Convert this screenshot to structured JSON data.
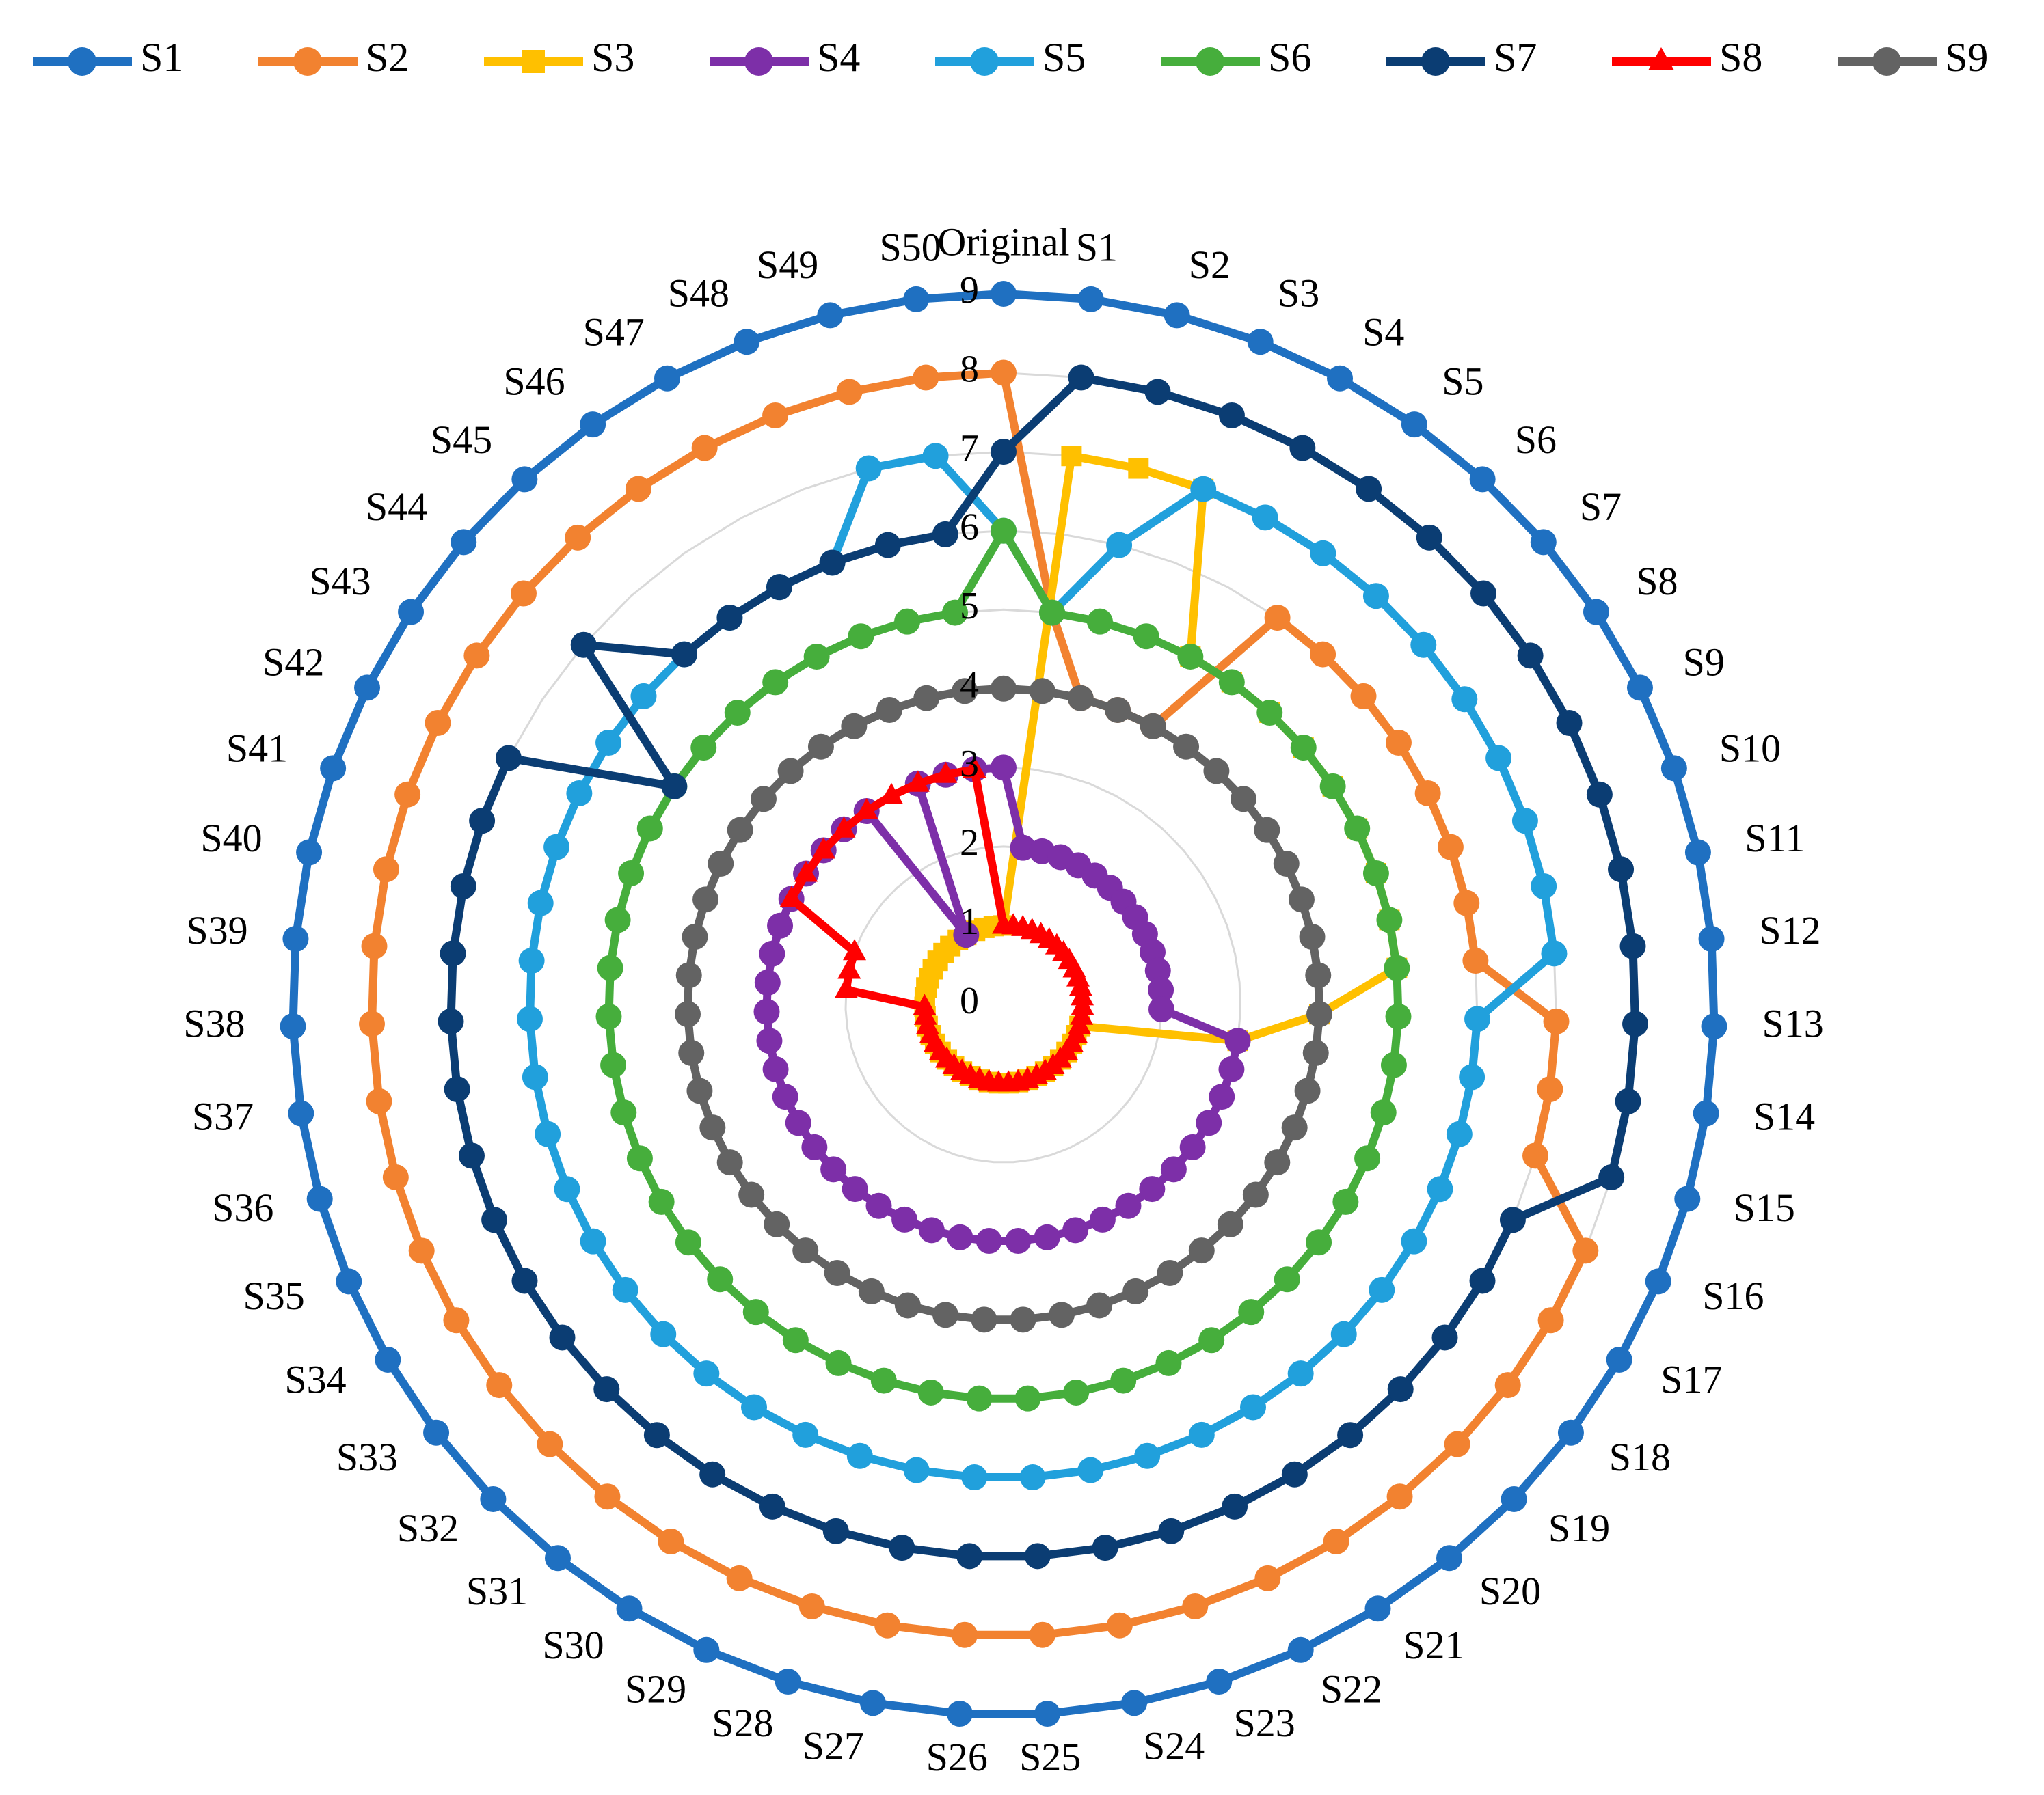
{
  "chart_data": {
    "type": "radar",
    "title": "",
    "rlim": [
      0,
      9
    ],
    "r_ticks": [
      "0",
      "1",
      "2",
      "3",
      "4",
      "5",
      "6",
      "7",
      "8",
      "9"
    ],
    "grid": true,
    "legend_position": "top",
    "categories": [
      "Original",
      "S1",
      "S2",
      "S3",
      "S4",
      "S5",
      "S6",
      "S7",
      "S8",
      "S9",
      "S10",
      "S11",
      "S12",
      "S13",
      "S14",
      "S15",
      "S16",
      "S17",
      "S18",
      "S19",
      "S20",
      "S21",
      "S22",
      "S23",
      "S24",
      "S25",
      "S26",
      "S27",
      "S28",
      "S29",
      "S30",
      "S31",
      "S32",
      "S33",
      "S34",
      "S35",
      "S36",
      "S37",
      "S38",
      "S39",
      "S40",
      "S41",
      "S42",
      "S43",
      "S44",
      "S45",
      "S46",
      "S47",
      "S48",
      "S49",
      "S50"
    ],
    "series": [
      {
        "name": "S1",
        "color": "#1F70C1",
        "marker": "circle",
        "values": [
          9,
          9,
          9,
          9,
          9,
          9,
          9,
          9,
          9,
          9,
          9,
          9,
          9,
          9,
          9,
          9,
          9,
          9,
          9,
          9,
          9,
          9,
          9,
          9,
          9,
          9,
          9,
          9,
          9,
          9,
          9,
          9,
          9,
          9,
          9,
          9,
          9,
          9,
          9,
          9,
          9,
          9,
          9,
          9,
          9,
          9,
          9,
          9,
          9,
          9,
          9
        ]
      },
      {
        "name": "S2",
        "color": "#F28230",
        "marker": "circle",
        "values": [
          8,
          5,
          4,
          4,
          4,
          6,
          6,
          6,
          6,
          6,
          6,
          6,
          6,
          7,
          7,
          7,
          8,
          8,
          8,
          8,
          8,
          8,
          8,
          8,
          8,
          8,
          8,
          8,
          8,
          8,
          8,
          8,
          8,
          8,
          8,
          8,
          8,
          8,
          8,
          8,
          8,
          8,
          8,
          8,
          8,
          8,
          8,
          8,
          8,
          8,
          8
        ]
      },
      {
        "name": "S3",
        "color": "#FFC000",
        "marker": "square",
        "values": [
          1,
          7,
          7,
          7,
          5,
          5,
          5,
          5,
          5,
          5,
          5,
          5,
          5,
          4,
          3,
          1,
          1,
          1,
          1,
          1,
          1,
          1,
          1,
          1,
          1,
          1,
          1,
          1,
          1,
          1,
          1,
          1,
          1,
          1,
          1,
          1,
          1,
          1,
          1,
          1,
          1,
          1,
          1,
          1,
          1,
          1,
          1,
          1,
          1,
          1,
          1
        ]
      },
      {
        "name": "S4",
        "color": "#7D2FA8",
        "marker": "circle",
        "values": [
          3,
          2,
          2,
          2,
          2,
          2,
          2,
          2,
          2,
          2,
          2,
          2,
          2,
          2,
          3,
          3,
          3,
          3,
          3,
          3,
          3,
          3,
          3,
          3,
          3,
          3,
          3,
          3,
          3,
          3,
          3,
          3,
          3,
          3,
          3,
          3,
          3,
          3,
          3,
          3,
          3,
          3,
          3,
          3,
          3,
          3,
          3,
          1,
          3,
          3,
          3
        ]
      },
      {
        "name": "S5",
        "color": "#21A0DC",
        "marker": "circle",
        "values": [
          6,
          5,
          6,
          7,
          7,
          7,
          7,
          7,
          7,
          7,
          7,
          7,
          7,
          6,
          6,
          6,
          6,
          6,
          6,
          6,
          6,
          6,
          6,
          6,
          6,
          6,
          6,
          6,
          6,
          6,
          6,
          6,
          6,
          6,
          6,
          6,
          6,
          6,
          6,
          6,
          6,
          6,
          6,
          6,
          6,
          6,
          6,
          6,
          6,
          7,
          7
        ]
      },
      {
        "name": "S6",
        "color": "#46AE3C",
        "marker": "circle",
        "values": [
          6,
          5,
          5,
          5,
          5,
          5,
          5,
          5,
          5,
          5,
          5,
          5,
          5,
          5,
          5,
          5,
          5,
          5,
          5,
          5,
          5,
          5,
          5,
          5,
          5,
          5,
          5,
          5,
          5,
          5,
          5,
          5,
          5,
          5,
          5,
          5,
          5,
          5,
          5,
          5,
          5,
          5,
          5,
          5,
          5,
          5,
          5,
          5,
          5,
          5,
          5
        ]
      },
      {
        "name": "S7",
        "color": "#0B3D73",
        "marker": "circle",
        "values": [
          7,
          8,
          8,
          8,
          8,
          8,
          8,
          8,
          8,
          8,
          8,
          8,
          8,
          8,
          8,
          8,
          7,
          7,
          7,
          7,
          7,
          7,
          7,
          7,
          7,
          7,
          7,
          7,
          7,
          7,
          7,
          7,
          7,
          7,
          7,
          7,
          7,
          7,
          7,
          7,
          7,
          7,
          7,
          5,
          7,
          6,
          6,
          6,
          6,
          6,
          6
        ]
      },
      {
        "name": "S8",
        "color": "#FF0000",
        "marker": "triangle",
        "values": [
          1,
          1,
          1,
          1,
          1,
          1,
          1,
          1,
          1,
          1,
          1,
          1,
          1,
          1,
          1,
          1,
          1,
          1,
          1,
          1,
          1,
          1,
          1,
          1,
          1,
          1,
          1,
          1,
          1,
          1,
          1,
          1,
          1,
          1,
          1,
          1,
          1,
          1,
          1,
          2,
          2,
          2,
          3,
          3,
          3,
          3,
          3,
          3,
          3,
          3,
          3
        ]
      },
      {
        "name": "S9",
        "color": "#636363",
        "marker": "circle",
        "values": [
          4,
          4,
          4,
          4,
          4,
          4,
          4,
          4,
          4,
          4,
          4,
          4,
          4,
          4,
          4,
          4,
          4,
          4,
          4,
          4,
          4,
          4,
          4,
          4,
          4,
          4,
          4,
          4,
          4,
          4,
          4,
          4,
          4,
          4,
          4,
          4,
          4,
          4,
          4,
          4,
          4,
          4,
          4,
          4,
          4,
          4,
          4,
          4,
          4,
          4,
          4
        ]
      }
    ]
  }
}
